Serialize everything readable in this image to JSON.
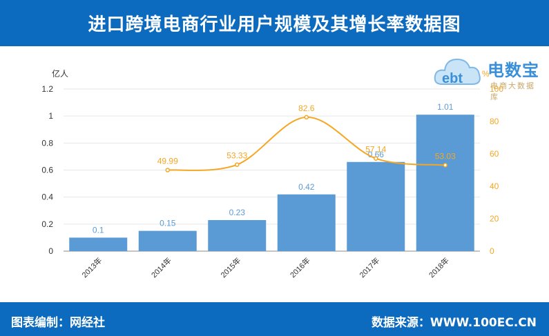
{
  "header": {
    "title": "进口跨境电商行业用户规模及其增长率数据图"
  },
  "footer": {
    "editor": "图表编制：网经社",
    "source": "数据来源：WWW.100EC.CN"
  },
  "logo": {
    "brand": "电数宝",
    "tagline": "电商大数据库",
    "mark": "ebt"
  },
  "chart_data": {
    "type": "bar",
    "categories": [
      "2013年",
      "2014年",
      "2015年",
      "2016年",
      "2017年",
      "2018年"
    ],
    "left_axis": {
      "unit": "亿人",
      "ticks": [
        "0",
        "0.2",
        "0.4",
        "0.6",
        "0.8",
        "1",
        "1.2"
      ],
      "ylim": [
        0,
        1.2
      ]
    },
    "right_axis": {
      "unit": "%",
      "ticks": [
        "0",
        "20",
        "40",
        "60",
        "80",
        "100"
      ],
      "ylim": [
        0,
        100
      ]
    },
    "series": [
      {
        "kind": "bar",
        "axis": "left",
        "values": [
          0.1,
          0.15,
          0.23,
          0.42,
          0.66,
          1.01
        ],
        "labels": [
          "0.1",
          "0.15",
          "0.23",
          "0.42",
          "0.66",
          "1.01"
        ],
        "color": "#5b9bd5"
      },
      {
        "kind": "line",
        "axis": "right",
        "smooth": true,
        "values": [
          null,
          49.99,
          53.33,
          82.6,
          57.14,
          53.03
        ],
        "labels": [
          "",
          "49.99",
          "53.33",
          "82.6",
          "57.14",
          "53.03"
        ],
        "color": "#f5a623"
      }
    ],
    "grid": true
  }
}
